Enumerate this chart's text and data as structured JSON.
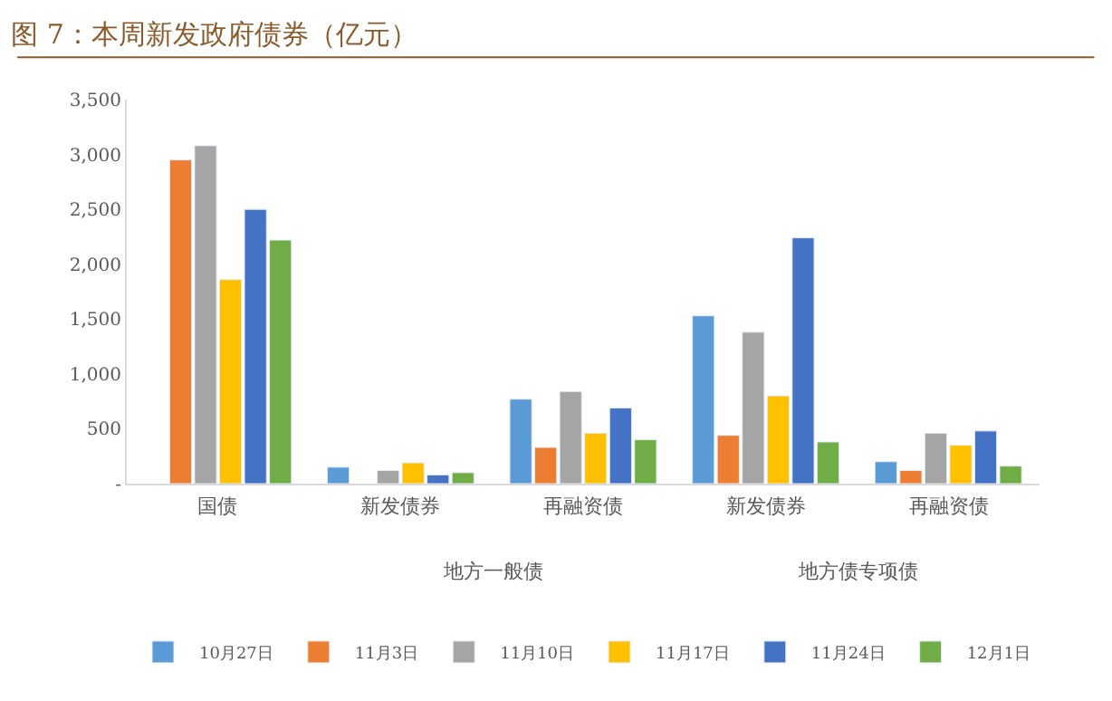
{
  "chart_data": {
    "type": "bar",
    "title": "图 7：本周新发政府债券（亿元）",
    "categories": [
      "国债",
      "新发债券",
      "再融资债",
      "新发债券",
      "再融资债"
    ],
    "annotations": [
      "地方一般债",
      "地方债专项债"
    ],
    "series": [
      {
        "name": "10月27日",
        "color": "#5b9bd5",
        "values": [
          null,
          150,
          770,
          1530,
          200
        ]
      },
      {
        "name": "11月3日",
        "color": "#ed7d31",
        "values": [
          2950,
          null,
          330,
          440,
          120
        ]
      },
      {
        "name": "11月10日",
        "color": "#a5a5a5",
        "values": [
          3080,
          120,
          840,
          1380,
          460
        ]
      },
      {
        "name": "11月17日",
        "color": "#ffc000",
        "values": [
          1860,
          190,
          460,
          800,
          350
        ]
      },
      {
        "name": "11月24日",
        "color": "#4472c4",
        "values": [
          2500,
          80,
          690,
          2240,
          480
        ]
      },
      {
        "name": "12月1日",
        "color": "#70ad47",
        "values": [
          2220,
          100,
          400,
          380,
          160
        ]
      }
    ],
    "ylim": [
      0,
      3500
    ],
    "yticks": [
      {
        "value": 0,
        "label": "-"
      },
      500,
      {
        "value": 1000,
        "label": "1,000"
      },
      {
        "value": 1500,
        "label": "1,500"
      },
      {
        "value": 2000,
        "label": "2,000"
      },
      {
        "value": 2500,
        "label": "2,500"
      },
      {
        "value": 3000,
        "label": "3,000"
      },
      {
        "value": 3500,
        "label": "3,500"
      }
    ],
    "legend": "bottom"
  }
}
